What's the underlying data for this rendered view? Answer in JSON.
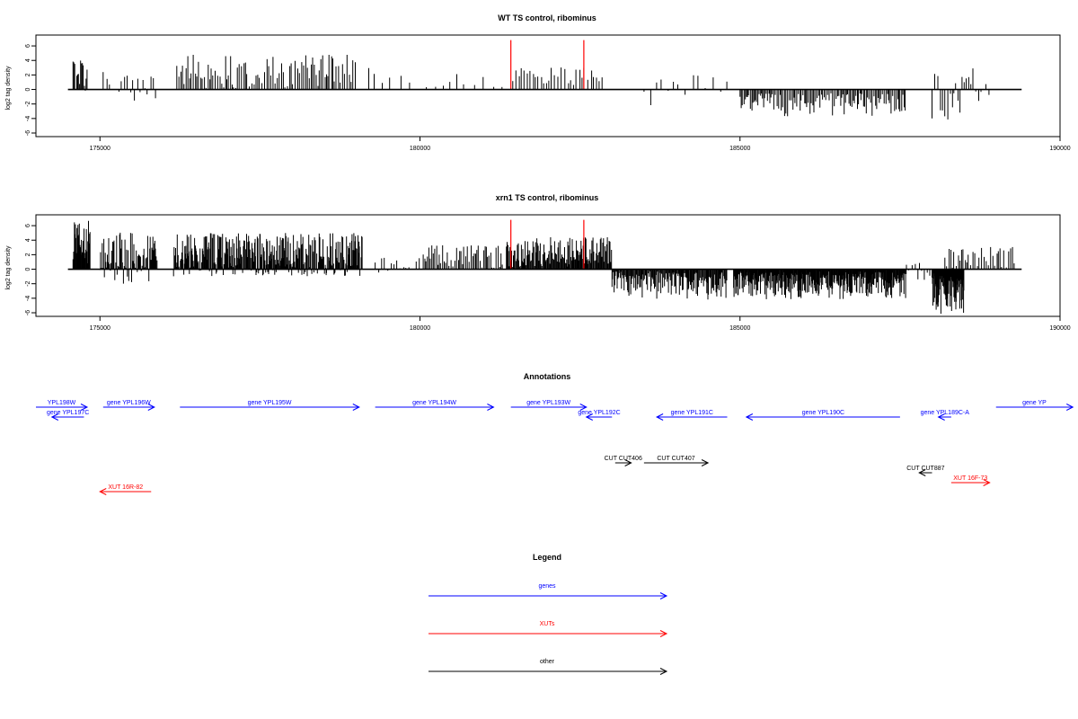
{
  "chart_data": [
    {
      "type": "bar",
      "title": "WT TS control, ribominus",
      "ylabel": "log2 tag density",
      "xlim": [
        174000,
        190000
      ],
      "ylim": [
        -6,
        7
      ],
      "x_ticks": [
        175000,
        180000,
        185000,
        190000
      ],
      "y_ticks": [
        -6,
        -4,
        -2,
        0,
        2,
        4,
        6
      ],
      "baseline_range": [
        174500,
        189400
      ],
      "highlight_color": "#ff0000",
      "bar_color": "#000000",
      "highlight_x": [
        181420,
        182560
      ],
      "highlight_value": 6.8,
      "segments": [
        {
          "start": 174580,
          "end": 174800,
          "min": -0.3,
          "max": 4.5,
          "step": 15
        },
        {
          "start": 175050,
          "end": 175900,
          "min": -1.6,
          "max": 2.8,
          "step": 45
        },
        {
          "start": 176200,
          "end": 179000,
          "min": 0.2,
          "max": 4.8,
          "step": 30
        },
        {
          "start": 179200,
          "end": 180000,
          "min": 0.2,
          "max": 3.2,
          "step": 130
        },
        {
          "start": 180100,
          "end": 181300,
          "min": 0.3,
          "max": 2.2,
          "step": 140
        },
        {
          "start": 181450,
          "end": 182900,
          "min": 0.3,
          "max": 3.3,
          "step": 45
        },
        {
          "start": 183500,
          "end": 184800,
          "min": -2.2,
          "max": 2.2,
          "step": 95
        },
        {
          "start": 185000,
          "end": 187600,
          "min": -3.8,
          "max": -0.5,
          "step": 22
        },
        {
          "start": 188000,
          "end": 188900,
          "min": -4.2,
          "max": 3.0,
          "step": 35
        }
      ]
    },
    {
      "type": "bar",
      "title": "xrn1 TS control, ribominus",
      "ylabel": "log2 tag density",
      "xlim": [
        174000,
        190000
      ],
      "ylim": [
        -6,
        7
      ],
      "x_ticks": [
        175000,
        180000,
        185000,
        190000
      ],
      "y_ticks": [
        -6,
        -4,
        -2,
        0,
        2,
        4,
        6
      ],
      "baseline_range": [
        174500,
        189400
      ],
      "highlight_color": "#ff0000",
      "bar_color": "#000000",
      "highlight_x": [
        181420,
        182560
      ],
      "highlight_value": 6.8,
      "segments": [
        {
          "start": 174580,
          "end": 174850,
          "min": 0.5,
          "max": 6.8,
          "step": 8
        },
        {
          "start": 175000,
          "end": 175900,
          "min": -2.0,
          "max": 5.2,
          "step": 12
        },
        {
          "start": 176150,
          "end": 179100,
          "min": -1.0,
          "max": 5.0,
          "step": 9
        },
        {
          "start": 179300,
          "end": 180000,
          "min": -0.5,
          "max": 2.0,
          "step": 45
        },
        {
          "start": 180050,
          "end": 181300,
          "min": 0.2,
          "max": 3.3,
          "step": 25
        },
        {
          "start": 181350,
          "end": 183000,
          "min": 0.3,
          "max": 4.6,
          "step": 12
        },
        {
          "start": 183000,
          "end": 184800,
          "min": -4.2,
          "max": -0.3,
          "step": 12
        },
        {
          "start": 184900,
          "end": 187600,
          "min": -4.2,
          "max": -0.3,
          "step": 8
        },
        {
          "start": 187600,
          "end": 188200,
          "min": -1.5,
          "max": 1.2,
          "step": 40
        },
        {
          "start": 188000,
          "end": 188500,
          "min": -6.2,
          "max": -0.5,
          "step": 6
        },
        {
          "start": 188200,
          "end": 189300,
          "min": 0.2,
          "max": 3.2,
          "step": 30
        }
      ]
    }
  ],
  "annotations": {
    "title": "Annotations",
    "features": [
      {
        "label": "YPL198W",
        "start": 174000,
        "end": 174800,
        "dir": "right",
        "type": "gene",
        "row": 0
      },
      {
        "label": "gene YPL197C",
        "start": 174750,
        "end": 174250,
        "dir": "left",
        "type": "gene",
        "row": 1
      },
      {
        "label": "gene YPL196W",
        "start": 175050,
        "end": 175850,
        "dir": "right",
        "type": "gene",
        "row": 0
      },
      {
        "label": "gene YPL195W",
        "start": 176250,
        "end": 179050,
        "dir": "right",
        "type": "gene",
        "row": 0
      },
      {
        "label": "gene YPL194W",
        "start": 179300,
        "end": 181150,
        "dir": "right",
        "type": "gene",
        "row": 0
      },
      {
        "label": "gene YPL193W",
        "start": 181420,
        "end": 182600,
        "dir": "right",
        "type": "gene",
        "row": 0
      },
      {
        "label": "gene YPL192C",
        "start": 183000,
        "end": 182600,
        "dir": "left",
        "type": "gene",
        "row": 1
      },
      {
        "label": "gene YPL191C",
        "start": 184800,
        "end": 183700,
        "dir": "left",
        "type": "gene",
        "row": 1
      },
      {
        "label": "gene YPL190C",
        "start": 187500,
        "end": 185100,
        "dir": "left",
        "type": "gene",
        "row": 1
      },
      {
        "label": "gene YPL189C-A",
        "start": 188300,
        "end": 188100,
        "dir": "left",
        "type": "gene",
        "row": 1
      },
      {
        "label": "gene YP",
        "start": 189000,
        "end": 190200,
        "dir": "right",
        "type": "gene",
        "row": 0
      },
      {
        "label": "CUT CUT406",
        "start": 183050,
        "end": 183300,
        "dir": "right",
        "type": "other",
        "row": 3
      },
      {
        "label": "CUT CUT407",
        "start": 183500,
        "end": 184500,
        "dir": "right",
        "type": "other",
        "row": 3
      },
      {
        "label": "CUT CUT887",
        "start": 188000,
        "end": 187800,
        "dir": "left",
        "type": "other",
        "row": 4
      },
      {
        "label": "XUT 16F-73",
        "start": 188300,
        "end": 188900,
        "dir": "right",
        "type": "xut",
        "row": 5
      },
      {
        "label": "XUT 16R-82",
        "start": 175800,
        "end": 175000,
        "dir": "left",
        "type": "xut",
        "row": 6
      }
    ]
  },
  "legend": {
    "title": "Legend",
    "items": [
      {
        "label": "genes",
        "color": "#0000ff"
      },
      {
        "label": "XUTs",
        "color": "#ff0000"
      },
      {
        "label": "other",
        "color": "#000000"
      }
    ]
  },
  "colors": {
    "gene": "#0000ff",
    "xut": "#ff0000",
    "other": "#000000"
  }
}
